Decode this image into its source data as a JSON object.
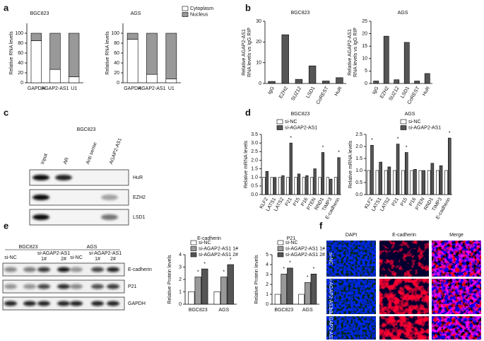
{
  "panel_labels": [
    "a",
    "b",
    "c",
    "d",
    "e",
    "f"
  ],
  "chart_data": [
    {
      "type": "bar",
      "stacked": true,
      "title": "BGC823",
      "ylabel": "Relative RNA levels",
      "categories": [
        "GAPDH",
        "AGAP2-AS1",
        "U1"
      ],
      "series": [
        {
          "name": "Cytoplasm",
          "color": "#ffffff",
          "values": [
            85,
            27,
            12
          ]
        },
        {
          "name": "Nucleus",
          "color": "#999999",
          "values": [
            15,
            73,
            88
          ]
        }
      ],
      "ylim": [
        0,
        120
      ],
      "yticks": [
        0,
        20,
        40,
        60,
        80,
        100
      ]
    },
    {
      "type": "bar",
      "stacked": true,
      "title": "AGS",
      "ylabel": "Relative RNA levels",
      "categories": [
        "GAPDH",
        "AGAP2-AS1",
        "U1"
      ],
      "series": [
        {
          "name": "Cytoplasm",
          "color": "#ffffff",
          "values": [
            88,
            17,
            8
          ]
        },
        {
          "name": "Nucleus",
          "color": "#999999",
          "values": [
            12,
            83,
            92
          ]
        }
      ],
      "ylim": [
        0,
        120
      ],
      "yticks": [
        0,
        20,
        40,
        60,
        80,
        100
      ],
      "legend": "top-right"
    },
    {
      "type": "bar",
      "title": "BGC823",
      "ylabel": [
        "Relative AGAP2-AS1",
        "RNA levels  vs IgG RIP"
      ],
      "categories": [
        "IgG",
        "EZH2",
        "SUZ12",
        "LSD1",
        "CoREST",
        "HuR"
      ],
      "series": [
        {
          "name": "RIP",
          "color": "#555555",
          "values": [
            1,
            23.5,
            2,
            8.5,
            1.2,
            2.8
          ]
        }
      ],
      "ylim": [
        0,
        30
      ],
      "yticks": [
        0,
        10,
        20,
        30
      ]
    },
    {
      "type": "bar",
      "title": "AGS",
      "ylabel": [
        "Relative AGAP2-AS1",
        "RNA levels  vs IgG RIP"
      ],
      "categories": [
        "IgG",
        "EZH2",
        "SUZ12",
        "LSD1",
        "CoREST",
        "HuR"
      ],
      "series": [
        {
          "name": "RIP",
          "color": "#555555",
          "values": [
            1,
            19,
            1.5,
            16.5,
            1,
            4
          ]
        }
      ],
      "ylim": [
        0,
        25
      ],
      "yticks": [
        0,
        5,
        10,
        15,
        20,
        25
      ]
    },
    {
      "type": "bar",
      "title": "BGC823",
      "ylabel": "Relative mRNA levels",
      "categories": [
        "KLF2",
        "LATS1",
        "LATS2",
        "P21",
        "P15",
        "P16",
        "PTEN",
        "RND1",
        "TIMP3",
        "E-cadherin"
      ],
      "series": [
        {
          "name": "si-NC",
          "color": "#ffffff",
          "values": [
            1,
            1,
            1,
            1,
            1,
            1,
            1,
            1,
            1,
            1
          ]
        },
        {
          "name": "si-AGAP2-AS1",
          "color": "#555555",
          "values": [
            1.35,
            1.0,
            1.1,
            3.0,
            1.2,
            1.1,
            1.5,
            2.45,
            0.9,
            2.15
          ],
          "significance": [
            null,
            null,
            null,
            "*",
            null,
            null,
            null,
            "*",
            null,
            "*"
          ]
        }
      ],
      "ylim": [
        0,
        3.5
      ],
      "yticks": [
        {
          "value": 0,
          "label": "0.0"
        },
        0.5,
        {
          "value": 1,
          "label": "1.0"
        },
        1.5,
        {
          "value": 2,
          "label": "2.0"
        },
        2.5,
        {
          "value": 3,
          "label": "3.0"
        },
        3.5
      ],
      "legend": "top-left"
    },
    {
      "type": "bar",
      "title": "AGS",
      "ylabel": "Relative mRNA levels",
      "categories": [
        "KLF2",
        "LATS1",
        "LATS2",
        "P21",
        "P15",
        "P16",
        "PTEN",
        "RND1",
        "TIMP3",
        "E-cadherin"
      ],
      "series": [
        {
          "name": "si-NC",
          "color": "#ffffff",
          "values": [
            1,
            1,
            1,
            1,
            1,
            1,
            1,
            1,
            1,
            1
          ]
        },
        {
          "name": "si-AGAP2-AS1",
          "color": "#555555",
          "values": [
            2.05,
            1.35,
            1.15,
            2.1,
            1.75,
            1.05,
            1.0,
            1.3,
            1.2,
            2.35
          ],
          "significance": [
            "*",
            null,
            null,
            "*",
            "*",
            null,
            null,
            null,
            null,
            "*"
          ]
        }
      ],
      "ylim": [
        0,
        2.5
      ],
      "yticks": [
        {
          "value": 0,
          "label": "0.0"
        },
        0.5,
        {
          "value": 1,
          "label": "1.0"
        },
        1.5,
        {
          "value": 2,
          "label": "2.0"
        },
        2.5
      ],
      "legend": "top-right"
    },
    {
      "type": "bar",
      "title": "E-cadherin",
      "ylabel": "Relative Protein levels",
      "categories": [
        "BGC823",
        "AGS"
      ],
      "series": [
        {
          "name": "si-NC",
          "color": "#ffffff",
          "values": [
            1,
            1
          ]
        },
        {
          "name": "si-AGAP2-AS1 1#",
          "color": "#999999",
          "values": [
            2.2,
            2.2
          ],
          "significance": [
            "*",
            "*"
          ]
        },
        {
          "name": "si-AGAP2-AS1 2#",
          "color": "#555555",
          "values": [
            2.85,
            3.2
          ],
          "significance": [
            "*",
            "*"
          ]
        }
      ],
      "ylim": [
        0,
        4
      ],
      "yticks": [
        0,
        1,
        2,
        3,
        4
      ],
      "legend": "top-left"
    },
    {
      "type": "bar",
      "title": "P21",
      "ylabel": "Relative Protein levels",
      "categories": [
        "BGC823",
        "AGS"
      ],
      "series": [
        {
          "name": "si-NC",
          "color": "#ffffff",
          "values": [
            1,
            1
          ]
        },
        {
          "name": "si-AGAP2-AS1 1#",
          "color": "#999999",
          "values": [
            3.05,
            2.2
          ],
          "significance": [
            "*",
            "*"
          ]
        },
        {
          "name": "si-AGAP2-AS1 2#",
          "color": "#555555",
          "values": [
            3.65,
            3.05
          ],
          "significance": [
            "*",
            "*"
          ]
        }
      ],
      "ylim": [
        0,
        5
      ],
      "yticks": [
        0,
        1,
        2,
        3,
        4,
        5
      ],
      "legend": "top-left"
    }
  ],
  "blot_c": {
    "title": "BGC823",
    "lanes": [
      "Input",
      "AR",
      "Anti sense",
      "AGAP2-AS1"
    ],
    "rows": [
      "HuR",
      "EZH2",
      "LSD1"
    ]
  },
  "blot_e": {
    "groups": [
      {
        "name": "BGC823",
        "control": "si-NC",
        "treatment": "si-AGAP2-AS1",
        "lanes": [
          "1#",
          "2#"
        ]
      },
      {
        "name": "AGS",
        "control": "si-NC",
        "treatment": "si-AGAP2-AS1",
        "lanes": [
          "1#",
          "2#"
        ]
      }
    ],
    "rows": [
      "E-cadherin",
      "P21",
      "GAPDH"
    ]
  },
  "micrographs": {
    "columns": [
      "DAPI",
      "E-cadherin",
      "Merge"
    ],
    "rows": [
      "si-NC",
      "si-AGAP2-AS1 1#",
      "si-AGAP2-AS1 2#"
    ]
  }
}
